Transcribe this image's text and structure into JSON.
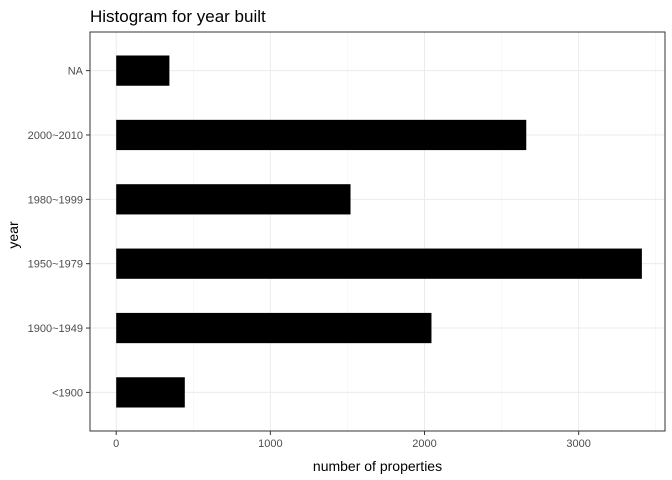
{
  "chart_data": {
    "type": "bar",
    "orientation": "horizontal",
    "title": "Histogram for year built",
    "xlabel": "number of properties",
    "ylabel": "year",
    "categories": [
      "<1900",
      "1900~1949",
      "1950~1979",
      "1980~1999",
      "2000~2010",
      "NA"
    ],
    "values": [
      445,
      2045,
      3410,
      1520,
      2660,
      345
    ],
    "xlim": [
      -170,
      3560
    ],
    "xticks": [
      0,
      1000,
      2000,
      3000
    ],
    "xtick_labels": [
      "0",
      "1000",
      "2000",
      "3000"
    ],
    "bar_color": "#000000",
    "grid": true,
    "theme": "bw"
  }
}
